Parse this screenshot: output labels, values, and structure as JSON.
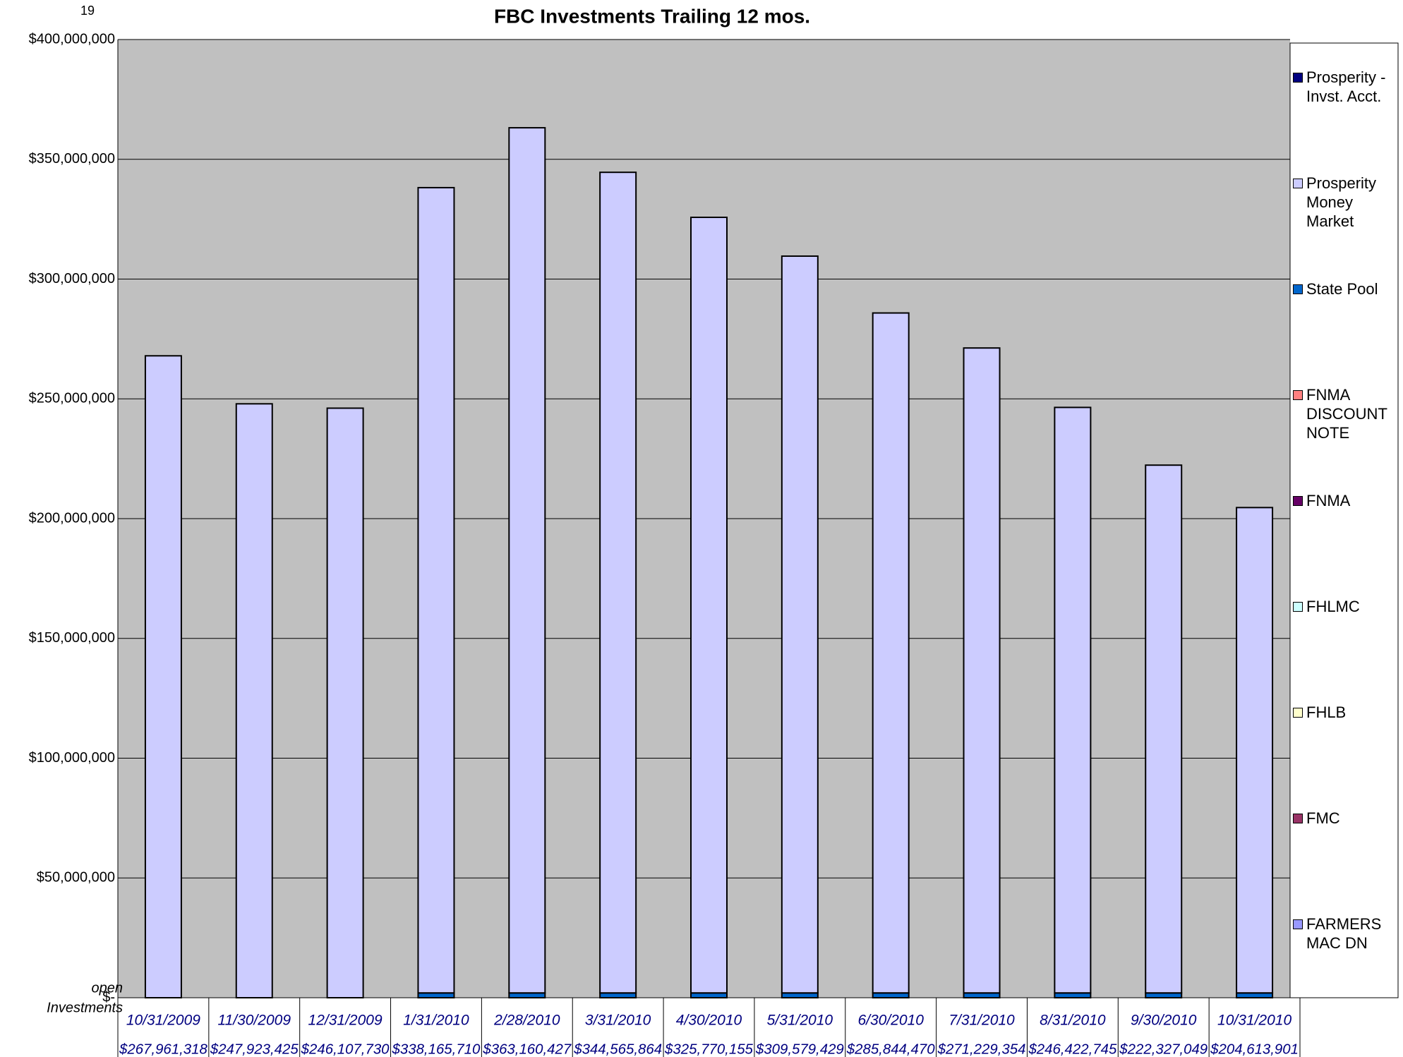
{
  "page_number": "19",
  "chart_data": {
    "type": "stacked_bar",
    "title": "FBC Investments Trailing 12 mos.",
    "categories": [
      "10/31/2009",
      "11/30/2009",
      "12/31/2009",
      "1/31/2010",
      "2/28/2010",
      "3/31/2010",
      "4/30/2010",
      "5/31/2010",
      "6/30/2010",
      "7/31/2010",
      "8/31/2010",
      "9/30/2010",
      "10/31/2010"
    ],
    "series": [
      {
        "name": "Prosperity - Invst. Acct.",
        "color": "#000080",
        "values": [
          0,
          0,
          0,
          0,
          0,
          0,
          0,
          0,
          0,
          0,
          0,
          0,
          0
        ]
      },
      {
        "name": "Prosperity Money Market",
        "color": "#ccccff",
        "values": [
          267961318,
          247923425,
          246107730,
          336165710,
          361160427,
          342565864,
          323770155,
          307579429,
          283844470,
          269229354,
          244422745,
          220327049,
          202613901
        ]
      },
      {
        "name": "State Pool",
        "color": "#0066cc",
        "values": [
          0,
          0,
          0,
          2000000,
          2000000,
          2000000,
          2000000,
          2000000,
          2000000,
          2000000,
          2000000,
          2000000,
          2000000
        ]
      },
      {
        "name": "FNMA DISCOUNT NOTE",
        "color": "#ff8080",
        "values": [
          0,
          0,
          0,
          0,
          0,
          0,
          0,
          0,
          0,
          0,
          0,
          0,
          0
        ]
      },
      {
        "name": "FNMA",
        "color": "#660066",
        "values": [
          0,
          0,
          0,
          0,
          0,
          0,
          0,
          0,
          0,
          0,
          0,
          0,
          0
        ]
      },
      {
        "name": "FHLMC",
        "color": "#ccffff",
        "values": [
          0,
          0,
          0,
          0,
          0,
          0,
          0,
          0,
          0,
          0,
          0,
          0,
          0
        ]
      },
      {
        "name": "FHLB",
        "color": "#ffffcc",
        "values": [
          0,
          0,
          0,
          0,
          0,
          0,
          0,
          0,
          0,
          0,
          0,
          0,
          0
        ]
      },
      {
        "name": "FMC",
        "color": "#993366",
        "values": [
          0,
          0,
          0,
          0,
          0,
          0,
          0,
          0,
          0,
          0,
          0,
          0,
          0
        ]
      },
      {
        "name": "FARMERS MAC DN",
        "color": "#9999ff",
        "values": [
          0,
          0,
          0,
          0,
          0,
          0,
          0,
          0,
          0,
          0,
          0,
          0,
          0
        ]
      }
    ],
    "ylim": [
      0,
      400000000
    ],
    "yticks": [
      {
        "value": 0,
        "label": "$-"
      },
      {
        "value": 50000000,
        "label": "$50,000,000"
      },
      {
        "value": 100000000,
        "label": "$100,000,000"
      },
      {
        "value": 150000000,
        "label": "$150,000,000"
      },
      {
        "value": 200000000,
        "label": "$200,000,000"
      },
      {
        "value": 250000000,
        "label": "$250,000,000"
      },
      {
        "value": 300000000,
        "label": "$300,000,000"
      },
      {
        "value": 350000000,
        "label": "$350,000,000"
      },
      {
        "value": 400000000,
        "label": "$400,000,000"
      }
    ],
    "grid": true,
    "legend": "right",
    "table_labels": [
      "open",
      "Investments"
    ],
    "totals": {
      "values": [
        267961318,
        247923425,
        246107730,
        338165710,
        363160427,
        344565864,
        325770155,
        309579429,
        285844470,
        271229354,
        246422745,
        222327049,
        204613901
      ],
      "value_labels": [
        "$267,961,318",
        "$247,923,425",
        "$246,107,730",
        "$338,165,710",
        "$363,160,427",
        "$344,565,864",
        "$325,770,155",
        "$309,579,429",
        "$285,844,470",
        "$271,229,354",
        "$246,422,745",
        "$222,327,049",
        "$204,613,901"
      ]
    }
  }
}
